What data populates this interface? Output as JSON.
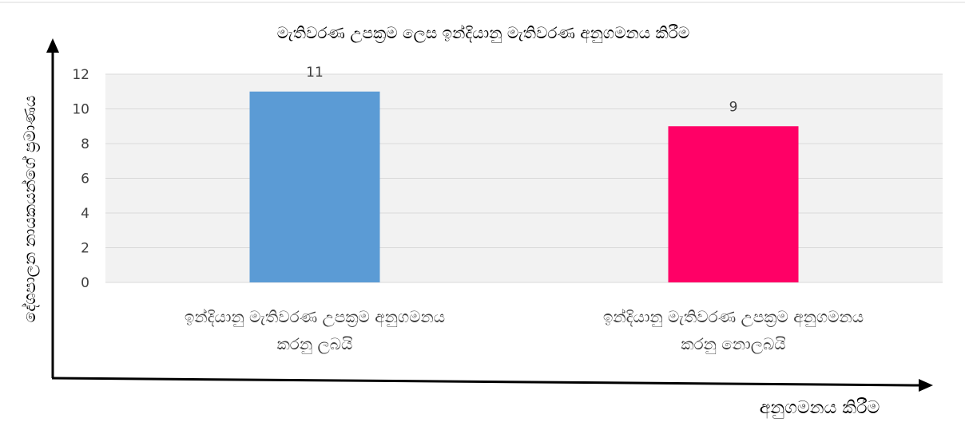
{
  "chart_data": {
    "type": "bar",
    "title": "මැතිවරණ උපක්‍රම ලෙස ඉන්දියානු මැතිවරණ අනුගමනය කිරීම",
    "xlabel": "අනුගමනය කිරීම",
    "ylabel": "දේශපාලන නායකයන්ගේ ප්‍රමාණය",
    "categories": [
      [
        "ඉන්දියානු මැතිවරණ උපක්‍රම අනුගමනය",
        "කරනු ලබයි"
      ],
      [
        "ඉන්දියානු මැතිවරණ උපක්‍රම අනුගමනය",
        "කරනු නොලබයි"
      ]
    ],
    "values": [
      11,
      9
    ],
    "data_labels": [
      "11",
      "9"
    ],
    "colors": [
      "#5b9bd5",
      "#ff0066"
    ],
    "ylim": [
      0,
      12
    ],
    "yticks": [
      0,
      2,
      4,
      6,
      8,
      10,
      12
    ],
    "grid": true,
    "legend": "none"
  }
}
